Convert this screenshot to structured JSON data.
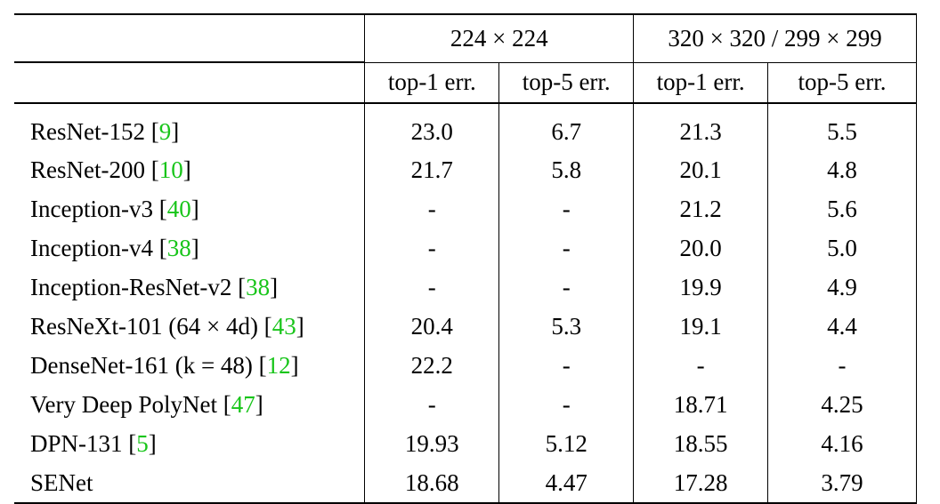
{
  "table": {
    "group_headers": [
      "224 × 224",
      "320 × 320 / 299 × 299"
    ],
    "sub_headers": [
      "top-1 err.",
      "top-5 err.",
      "top-1 err.",
      "top-5 err."
    ],
    "rows": [
      {
        "model": "ResNet-152 [",
        "cite": "9",
        "close": "]",
        "a1": "23.0",
        "a5": "6.7",
        "b1": "21.3",
        "b5": "5.5"
      },
      {
        "model": "ResNet-200 [",
        "cite": "10",
        "close": "]",
        "a1": "21.7",
        "a5": "5.8",
        "b1": "20.1",
        "b5": "4.8"
      },
      {
        "model": "Inception-v3 [",
        "cite": "40",
        "close": "]",
        "a1": "-",
        "a5": "-",
        "b1": "21.2",
        "b5": "5.6"
      },
      {
        "model": "Inception-v4 [",
        "cite": "38",
        "close": "]",
        "a1": "-",
        "a5": "-",
        "b1": "20.0",
        "b5": "5.0"
      },
      {
        "model": "Inception-ResNet-v2 [",
        "cite": "38",
        "close": "]",
        "a1": "-",
        "a5": "-",
        "b1": "19.9",
        "b5": "4.9"
      },
      {
        "model": "ResNeXt-101 (64 × 4d) [",
        "cite": "43",
        "close": "]",
        "a1": "20.4",
        "a5": "5.3",
        "b1": "19.1",
        "b5": "4.4"
      },
      {
        "model": "DenseNet-161 (k = 48) [",
        "cite": "12",
        "close": "]",
        "a1": "22.2",
        "a5": "-",
        "b1": "-",
        "b5": "-"
      },
      {
        "model": "Very Deep PolyNet [",
        "cite": "47",
        "close": "]",
        "a1": "-",
        "a5": "-",
        "b1": "18.71",
        "b5": "4.25"
      },
      {
        "model": "DPN-131 [",
        "cite": "5",
        "close": "]",
        "a1": "19.93",
        "a5": "5.12",
        "b1": "18.55",
        "b5": "4.16"
      },
      {
        "model": "SENet",
        "cite": "",
        "close": "",
        "a1": "18.68",
        "a5": "4.47",
        "b1": "17.28",
        "b5": "3.79"
      }
    ]
  },
  "colors": {
    "citation": "#18c51a",
    "text": "#000000",
    "background": "#ffffff"
  }
}
